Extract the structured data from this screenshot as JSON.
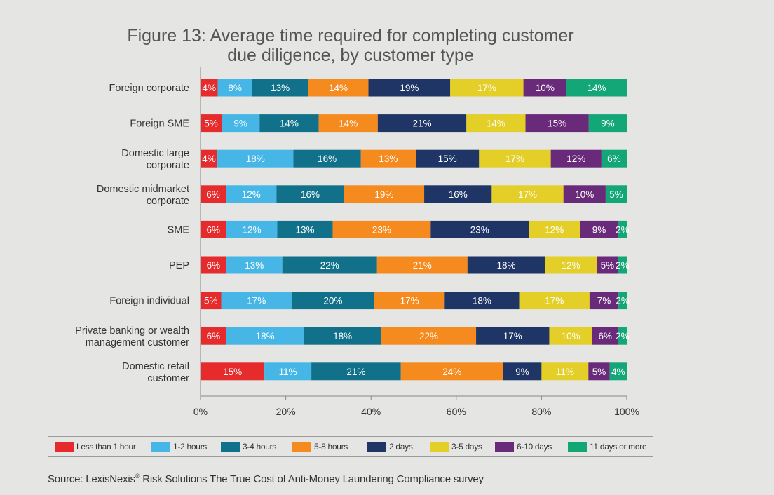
{
  "title": {
    "line1": "Figure 13: Average time required for completing customer",
    "line2": "due diligence, by customer type"
  },
  "chart_data": {
    "type": "bar",
    "orientation": "horizontal",
    "stacked": true,
    "percent": true,
    "categories": [
      [
        "Foreign corporate"
      ],
      [
        "Foreign SME"
      ],
      [
        "Domestic large",
        "corporate"
      ],
      [
        "Domestic midmarket",
        "corporate"
      ],
      [
        "SME"
      ],
      [
        "PEP"
      ],
      [
        "Foreign individual"
      ],
      [
        "Private banking or wealth",
        "management customer"
      ],
      [
        "Domestic retail",
        "customer"
      ]
    ],
    "series": [
      {
        "name": "Less than 1 hour",
        "color": "#e52b2b",
        "values": [
          4,
          5,
          4,
          6,
          6,
          6,
          5,
          6,
          15
        ]
      },
      {
        "name": "1-2 hours",
        "color": "#45b6e6",
        "values": [
          8,
          9,
          18,
          12,
          12,
          13,
          17,
          18,
          11
        ]
      },
      {
        "name": "3-4 hours",
        "color": "#12718a",
        "values": [
          13,
          14,
          16,
          16,
          13,
          22,
          20,
          18,
          21
        ]
      },
      {
        "name": "5-8 hours",
        "color": "#f58a1f",
        "values": [
          14,
          14,
          13,
          19,
          23,
          21,
          17,
          22,
          24
        ]
      },
      {
        "name": "2 days",
        "color": "#1f3566",
        "values": [
          19,
          21,
          15,
          16,
          23,
          18,
          18,
          17,
          9
        ]
      },
      {
        "name": "3-5 days",
        "color": "#e3cf27",
        "values": [
          17,
          14,
          17,
          17,
          12,
          12,
          17,
          10,
          11
        ]
      },
      {
        "name": "6-10 days",
        "color": "#6a2a7a",
        "values": [
          10,
          15,
          12,
          10,
          9,
          5,
          7,
          6,
          5
        ]
      },
      {
        "name": "11 days or more",
        "color": "#13a676",
        "values": [
          14,
          9,
          6,
          5,
          2,
          2,
          2,
          2,
          4
        ]
      }
    ],
    "xlim": [
      0,
      100
    ],
    "xticks": [
      "0%",
      "20%",
      "40%",
      "60%",
      "80%",
      "100%"
    ],
    "legend_position": "bottom"
  },
  "source": {
    "prefix": "Source: LexisNexis",
    "reg": "®",
    "suffix": " Risk Solutions The True Cost of Anti-Money Laundering Compliance survey"
  }
}
